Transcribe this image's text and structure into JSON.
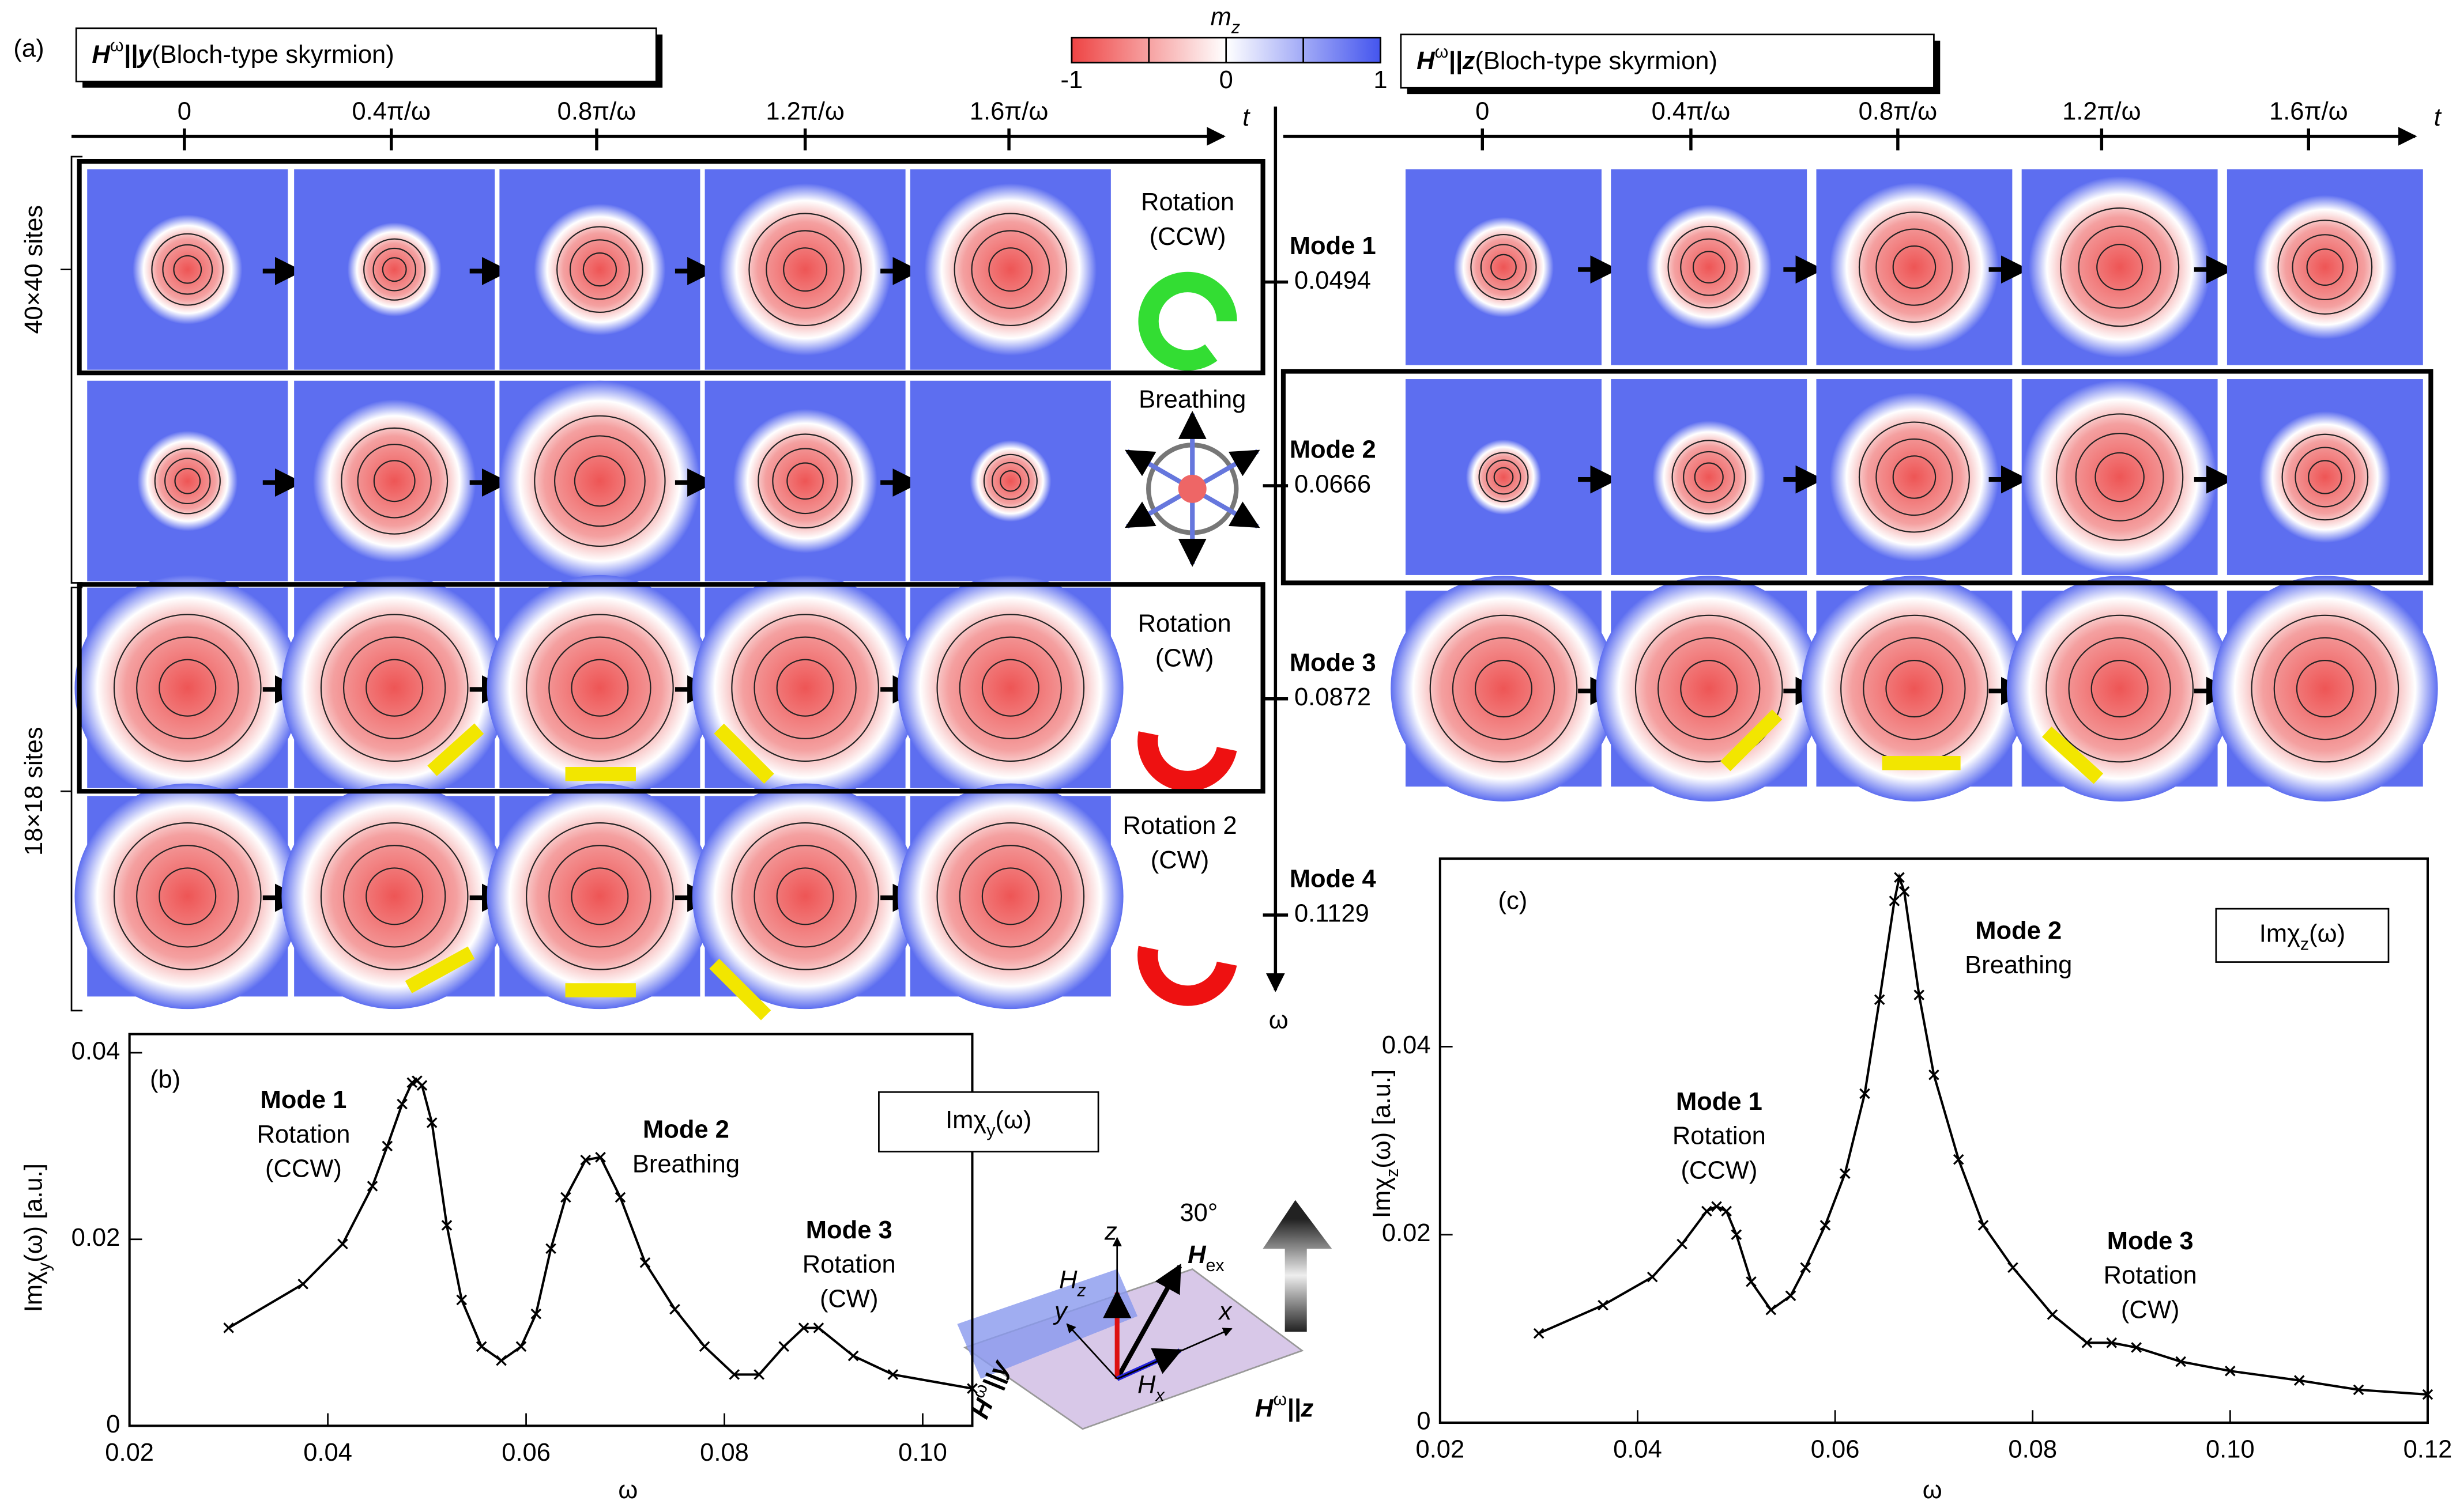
{
  "panel_a": {
    "label": "(a)",
    "left_title": {
      "field": "H",
      "superscript": "ω",
      "direction": "||y",
      "note": "(Bloch-type skyrmion)"
    },
    "right_title": {
      "field": "H",
      "superscript": "ω",
      "direction": "||z",
      "note": "(Bloch-type skyrmion)"
    },
    "colorbar": {
      "label": "m",
      "subscript": "z",
      "lim": [
        -1,
        1
      ],
      "ticks": [
        -1,
        0,
        1
      ]
    },
    "time_ticks": [
      "0",
      "0.4π/ω",
      "0.8π/ω",
      "1.2π/ω",
      "1.6π/ω"
    ],
    "time_label": "t",
    "freq_label": "ω",
    "sizes": [
      "40×40 sites",
      "18×18 sites"
    ],
    "modes": [
      {
        "name": "Mode 1",
        "frequency": 0.0494,
        "motion": [
          "Rotation",
          "(CCW)"
        ]
      },
      {
        "name": "Mode 2",
        "frequency": 0.0666,
        "motion": [
          "Breathing"
        ]
      },
      {
        "name": "Mode 3",
        "frequency": 0.0872,
        "motion": [
          "Rotation",
          "(CW)"
        ]
      },
      {
        "name": "Mode 4",
        "frequency": 0.1129,
        "motion": [
          "Rotation 2",
          "(CW)"
        ]
      }
    ]
  },
  "inset": {
    "z": "z",
    "x": "x",
    "y": "y",
    "angle": "30°",
    "hex": {
      "field": "H",
      "subscript": "ex"
    },
    "hz": {
      "field": "H",
      "subscript": "z"
    },
    "hx": {
      "field": "H",
      "subscript": "x"
    },
    "drive_y": {
      "field": "H",
      "superscript": "ω",
      "direction": "||y"
    },
    "drive_z": {
      "field": "H",
      "superscript": "ω",
      "direction": "||z"
    }
  },
  "chart_data": [
    {
      "type": "line",
      "panel": "(b)",
      "xlabel": "ω",
      "ylabel": {
        "text": "Imχ",
        "subscript": "y",
        "rest": "(ω) [a.u.]"
      },
      "legend_label": {
        "text": "Imχ",
        "subscript": "y",
        "rest": "(ω)"
      },
      "xlim": [
        0.02,
        0.105
      ],
      "ylim": [
        0,
        0.042
      ],
      "xticks": [
        {
          "value": 0.02,
          "label": "0.02"
        },
        {
          "value": 0.04,
          "label": "0.04"
        },
        {
          "value": 0.06,
          "label": "0.06"
        },
        {
          "value": 0.08,
          "label": "0.08"
        },
        {
          "value": 0.1,
          "label": "0.10"
        }
      ],
      "yticks": [
        {
          "value": 0,
          "label": "0"
        },
        {
          "value": 0.02,
          "label": "0.02"
        },
        {
          "value": 0.04,
          "label": "0.04"
        }
      ],
      "x": [
        0.03,
        0.0375,
        0.0415,
        0.0445,
        0.046,
        0.0475,
        0.0485,
        0.049,
        0.0495,
        0.0505,
        0.052,
        0.0535,
        0.0555,
        0.0575,
        0.0595,
        0.061,
        0.0625,
        0.064,
        0.066,
        0.0675,
        0.0695,
        0.072,
        0.075,
        0.078,
        0.081,
        0.0835,
        0.086,
        0.088,
        0.0895,
        0.093,
        0.097,
        0.105
      ],
      "series": [
        {
          "color": "#000000",
          "values": [
            0.0105,
            0.0152,
            0.0195,
            0.0257,
            0.03,
            0.0345,
            0.0368,
            0.037,
            0.0365,
            0.0325,
            0.0215,
            0.0135,
            0.0085,
            0.007,
            0.0085,
            0.012,
            0.019,
            0.0245,
            0.0285,
            0.0288,
            0.0245,
            0.0175,
            0.0125,
            0.0085,
            0.0055,
            0.0055,
            0.0085,
            0.0105,
            0.0105,
            0.0075,
            0.0055,
            0.004
          ]
        }
      ],
      "annotations": [
        [
          "Mode 1",
          "Rotation",
          "(CCW)"
        ],
        [
          "Mode 2",
          "Breathing"
        ],
        [
          "Mode 3",
          "Rotation",
          "(CW)"
        ]
      ]
    },
    {
      "type": "line",
      "panel": "(c)",
      "xlabel": "ω",
      "ylabel": {
        "text": "Imχ",
        "subscript": "z",
        "rest": "(ω) [a.u.]"
      },
      "legend_label": {
        "text": "Imχ",
        "subscript": "z",
        "rest": "(ω)"
      },
      "xlim": [
        0.02,
        0.12
      ],
      "ylim": [
        0,
        0.06
      ],
      "xticks": [
        {
          "value": 0.02,
          "label": "0.02"
        },
        {
          "value": 0.04,
          "label": "0.04"
        },
        {
          "value": 0.06,
          "label": "0.06"
        },
        {
          "value": 0.08,
          "label": "0.08"
        },
        {
          "value": 0.1,
          "label": "0.10"
        },
        {
          "value": 0.12,
          "label": "0.12"
        }
      ],
      "yticks": [
        {
          "value": 0,
          "label": "0"
        },
        {
          "value": 0.02,
          "label": "0.02"
        },
        {
          "value": 0.04,
          "label": "0.04"
        }
      ],
      "x": [
        0.03,
        0.0365,
        0.0415,
        0.0445,
        0.047,
        0.048,
        0.049,
        0.05,
        0.0515,
        0.0535,
        0.0555,
        0.057,
        0.059,
        0.061,
        0.063,
        0.0645,
        0.066,
        0.0665,
        0.067,
        0.0685,
        0.07,
        0.0725,
        0.075,
        0.078,
        0.082,
        0.0855,
        0.088,
        0.0905,
        0.095,
        0.1,
        0.107,
        0.113,
        0.12
      ],
      "series": [
        {
          "color": "#000000",
          "values": [
            0.0095,
            0.0125,
            0.0155,
            0.019,
            0.0225,
            0.023,
            0.0225,
            0.02,
            0.015,
            0.012,
            0.0135,
            0.0165,
            0.021,
            0.0265,
            0.035,
            0.045,
            0.0555,
            0.058,
            0.0565,
            0.0455,
            0.037,
            0.028,
            0.021,
            0.0165,
            0.0115,
            0.0085,
            0.0085,
            0.008,
            0.0065,
            0.0055,
            0.0045,
            0.0035,
            0.003
          ]
        }
      ],
      "annotations": [
        [
          "Mode 2",
          "Breathing"
        ],
        [
          "Mode 1",
          "Rotation",
          "(CCW)"
        ],
        [
          "Mode 3",
          "Rotation",
          "(CW)"
        ]
      ]
    }
  ]
}
